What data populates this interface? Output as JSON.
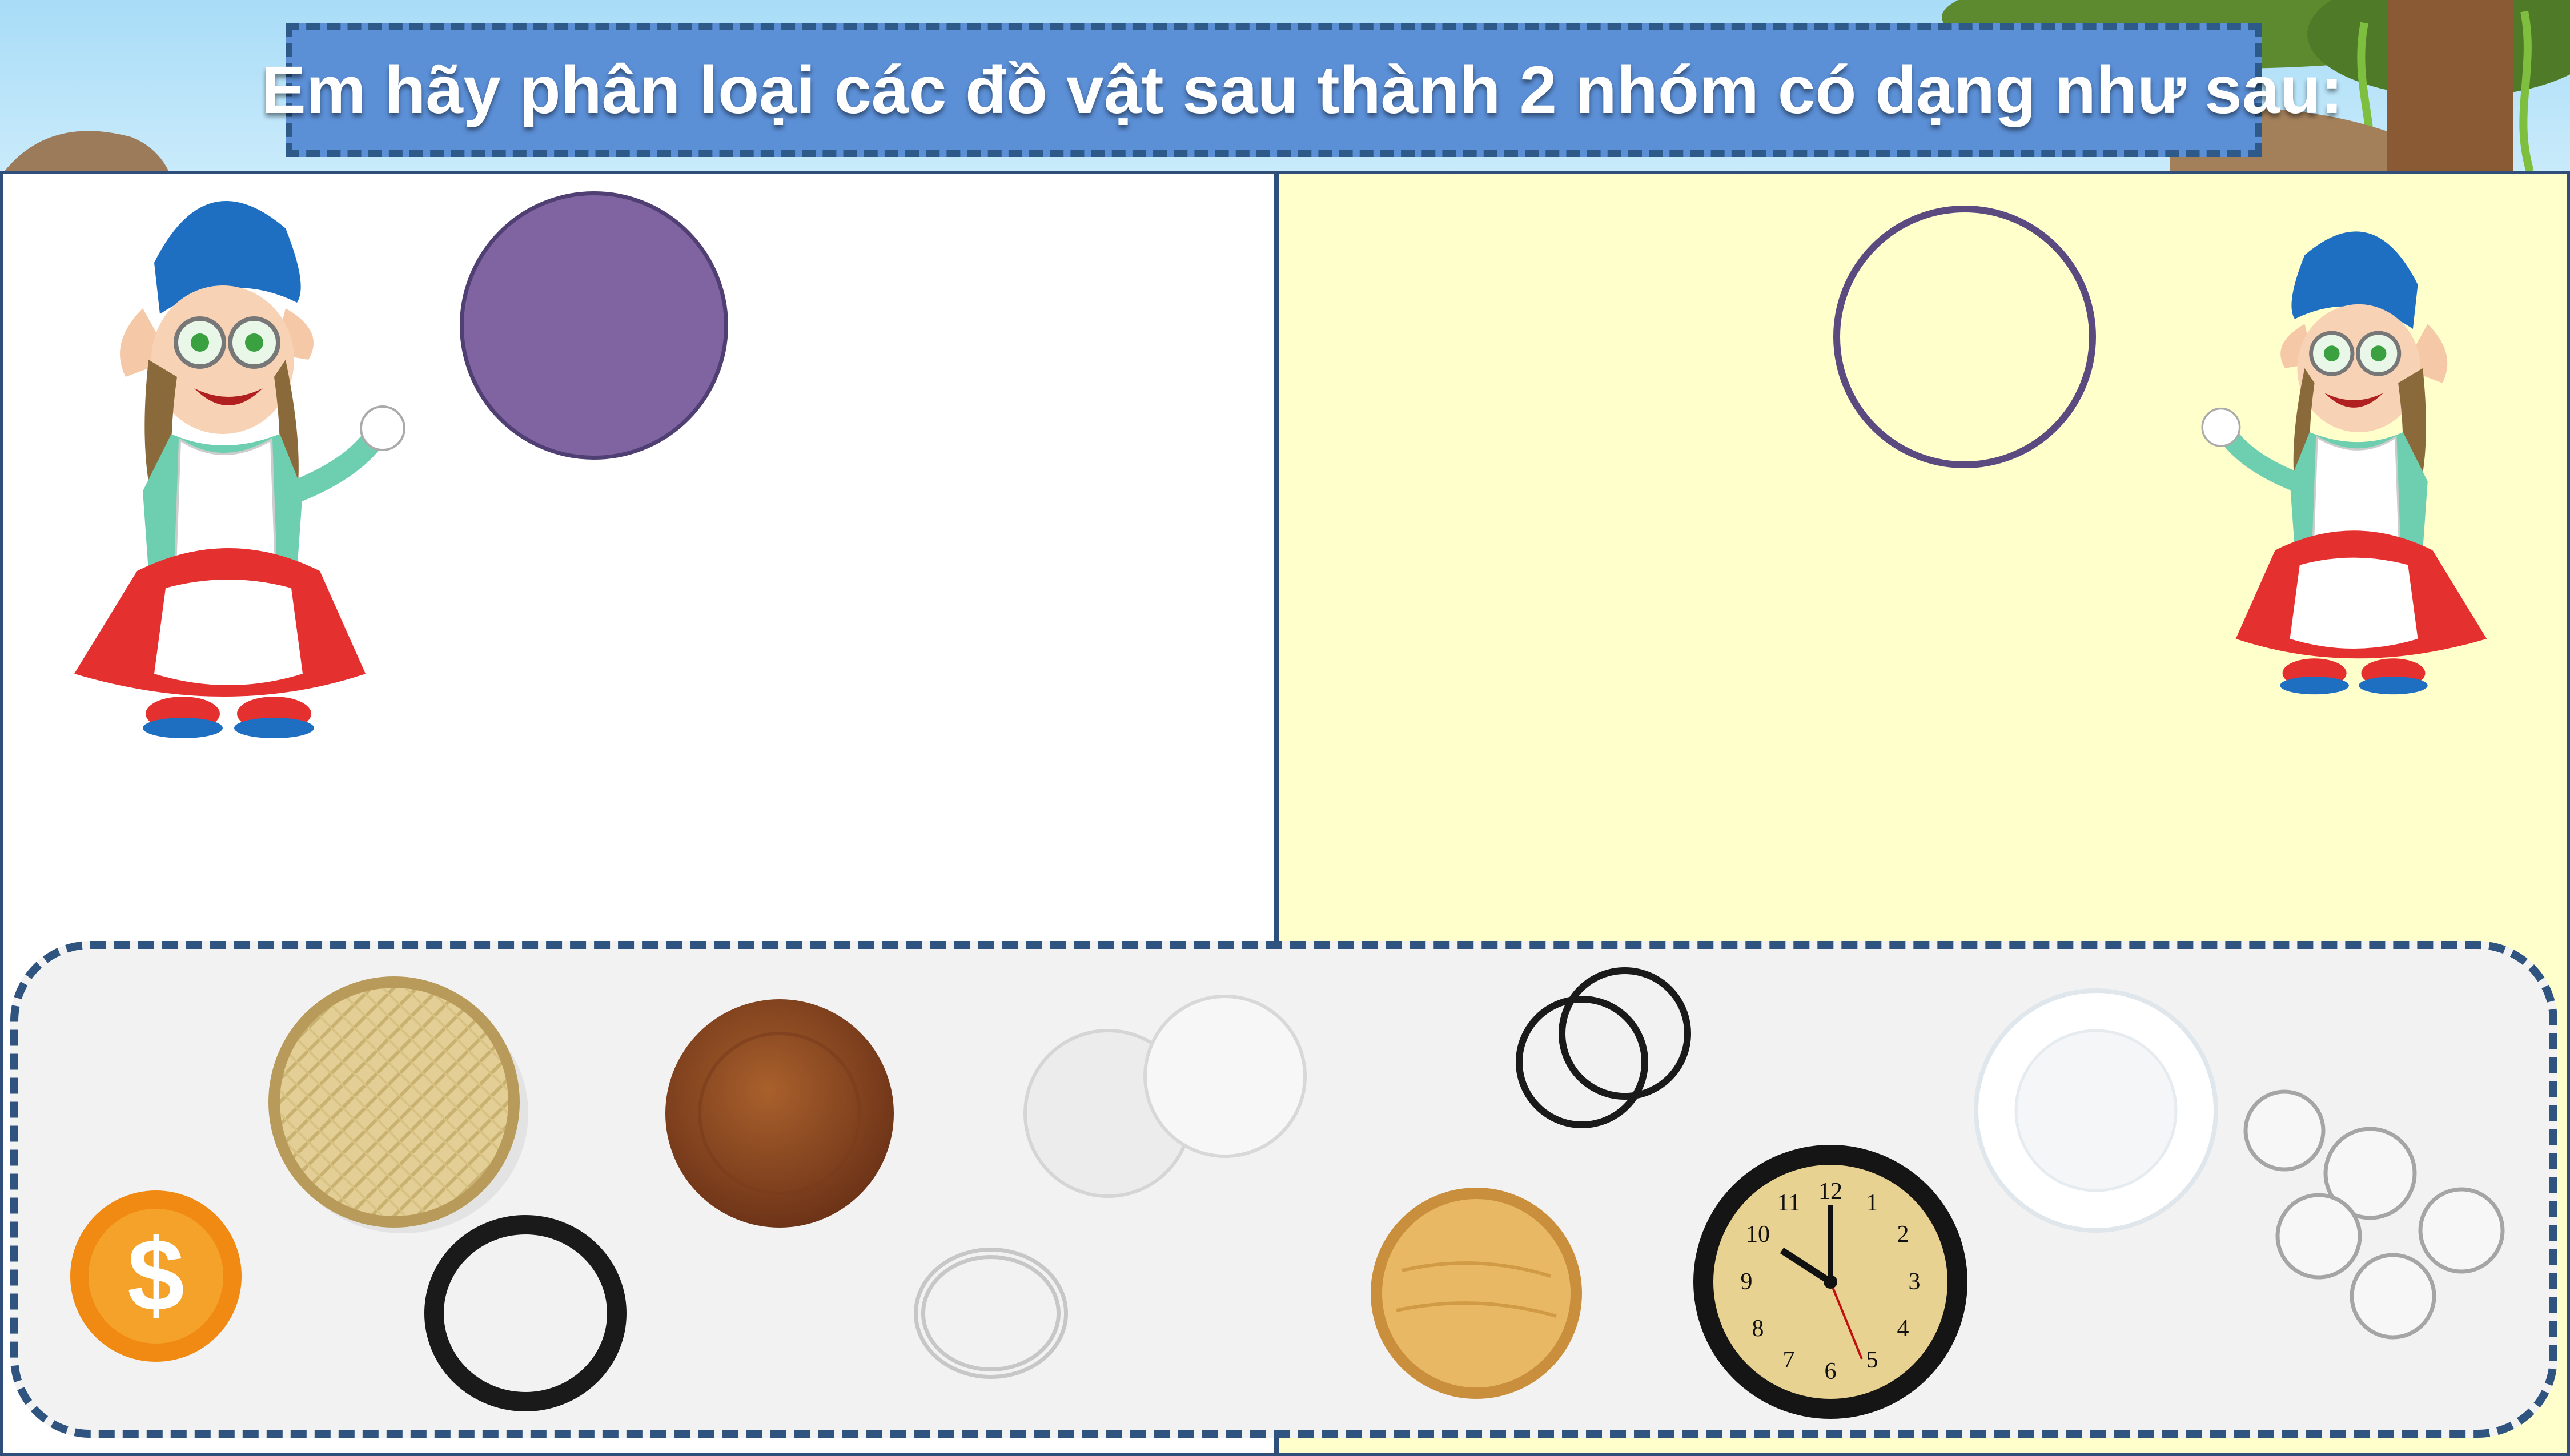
{
  "title": "Em hãy phân loại các đồ vật sau thành 2 nhóm có dạng như sau:",
  "groups": [
    {
      "name": "filled-circle-group",
      "color": "#8064a2"
    },
    {
      "name": "outline-circle-group",
      "color": "#5b4a80"
    }
  ],
  "colors": {
    "left_panel": "#ffffff",
    "right_panel": "#ffffcc",
    "title_box": "#5b8fd6",
    "tray_border": "#2f5480"
  },
  "items": [
    {
      "id": "coin",
      "icon": "gold-coin-icon",
      "symbol": "$"
    },
    {
      "id": "bamboo-basket",
      "icon": "woven-basket-icon"
    },
    {
      "id": "hair-tie",
      "icon": "black-hair-tie-icon"
    },
    {
      "id": "wooden-plate",
      "icon": "wooden-plate-icon"
    },
    {
      "id": "silver-ring",
      "icon": "silver-ring-icon"
    },
    {
      "id": "rice-papers",
      "icon": "rice-paper-icon"
    },
    {
      "id": "rubber-bands",
      "icon": "rubber-bands-icon"
    },
    {
      "id": "cutting-board",
      "icon": "round-cutting-board-icon"
    },
    {
      "id": "wall-clock",
      "icon": "clock-icon",
      "numbers": [
        "12",
        "1",
        "2",
        "3",
        "4",
        "5",
        "6",
        "7",
        "8",
        "9",
        "10",
        "11"
      ]
    },
    {
      "id": "white-plate",
      "icon": "white-plate-icon"
    },
    {
      "id": "bottle-caps",
      "icon": "bottle-caps-icon"
    }
  ]
}
